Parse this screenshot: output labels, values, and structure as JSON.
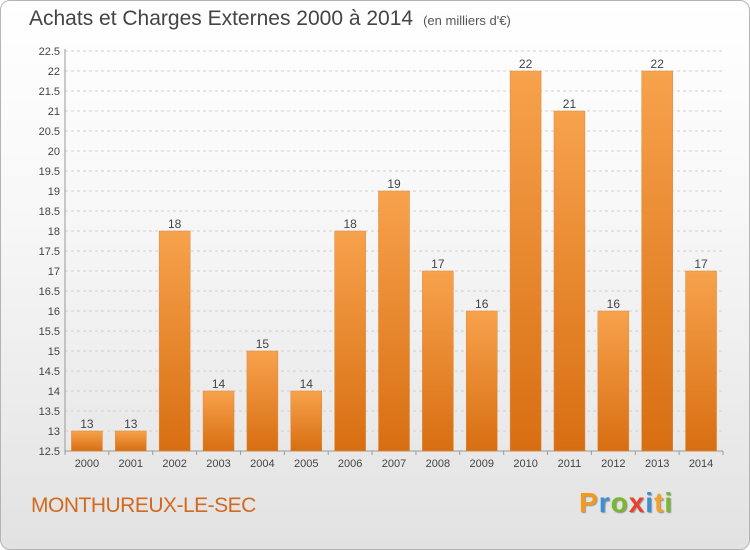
{
  "title": "Achats et Charges Externes 2000 à 2014",
  "unit": "(en milliers d'€)",
  "commune": "MONTHUREUX-LE-SEC",
  "logo": {
    "letters": [
      "P",
      "r",
      "o",
      "x",
      "i",
      "t",
      "i"
    ],
    "colors": [
      "#f39a1c",
      "#3b8fd4",
      "#79b82c",
      "#e8412c",
      "#3b8fd4",
      "#f2a12b",
      "#79b82c"
    ]
  },
  "colors": {
    "bar_top": "#f7a24c",
    "bar_bottom": "#d86e12",
    "commune_text": "#d2691e"
  },
  "chart_data": {
    "type": "bar",
    "categories": [
      "2000",
      "2001",
      "2002",
      "2003",
      "2004",
      "2005",
      "2006",
      "2007",
      "2008",
      "2009",
      "2010",
      "2011",
      "2012",
      "2013",
      "2014"
    ],
    "values": [
      13,
      13,
      18,
      14,
      15,
      14,
      18,
      19,
      17,
      16,
      22,
      21,
      16,
      22,
      17
    ],
    "data_labels": [
      "13",
      "13",
      "18",
      "14",
      "15",
      "14",
      "18",
      "19",
      "17",
      "16",
      "22",
      "21",
      "16",
      "22",
      "17"
    ],
    "ylim": [
      12.5,
      22.5
    ],
    "yticks": [
      "12.5",
      "13",
      "13.5",
      "14",
      "14.5",
      "15",
      "15.5",
      "16",
      "16.5",
      "17",
      "17.5",
      "18",
      "18.5",
      "19",
      "19.5",
      "20",
      "20.5",
      "21",
      "21.5",
      "22",
      "22.5"
    ],
    "grid": true,
    "legend": "none"
  }
}
